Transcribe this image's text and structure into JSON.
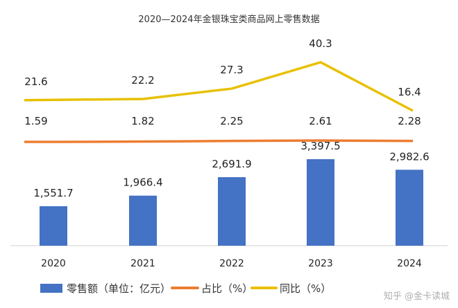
{
  "chart_data": {
    "type": "bar",
    "title": "2020—2024年金银珠宝类商品网上零售数据",
    "categories": [
      "2020",
      "2021",
      "2022",
      "2023",
      "2024"
    ],
    "series": [
      {
        "name": "零售额（单位：亿元）",
        "type": "bar",
        "color": "#4472C4",
        "values": [
          1551.7,
          1966.4,
          2691.9,
          3397.5,
          2982.6
        ],
        "labels": [
          "1,551.7",
          "1,966.4",
          "2,691.9",
          "3,397.5",
          "2,982.6"
        ]
      },
      {
        "name": "占比（%）",
        "type": "line",
        "color": "#ED7D31",
        "values": [
          1.59,
          1.82,
          2.25,
          2.61,
          2.28
        ],
        "labels": [
          "1.59",
          "1.82",
          "2.25",
          "2.61",
          "2.28"
        ]
      },
      {
        "name": "同比（%）",
        "type": "line",
        "color": "#E8C000",
        "values": [
          21.6,
          22.2,
          27.3,
          40.3,
          16.4
        ],
        "labels": [
          "21.6",
          "22.2",
          "27.3",
          "40.3",
          "16.4"
        ]
      }
    ],
    "grid": false,
    "legend_position": "bottom"
  },
  "watermark": "知乎 @金卡读城"
}
